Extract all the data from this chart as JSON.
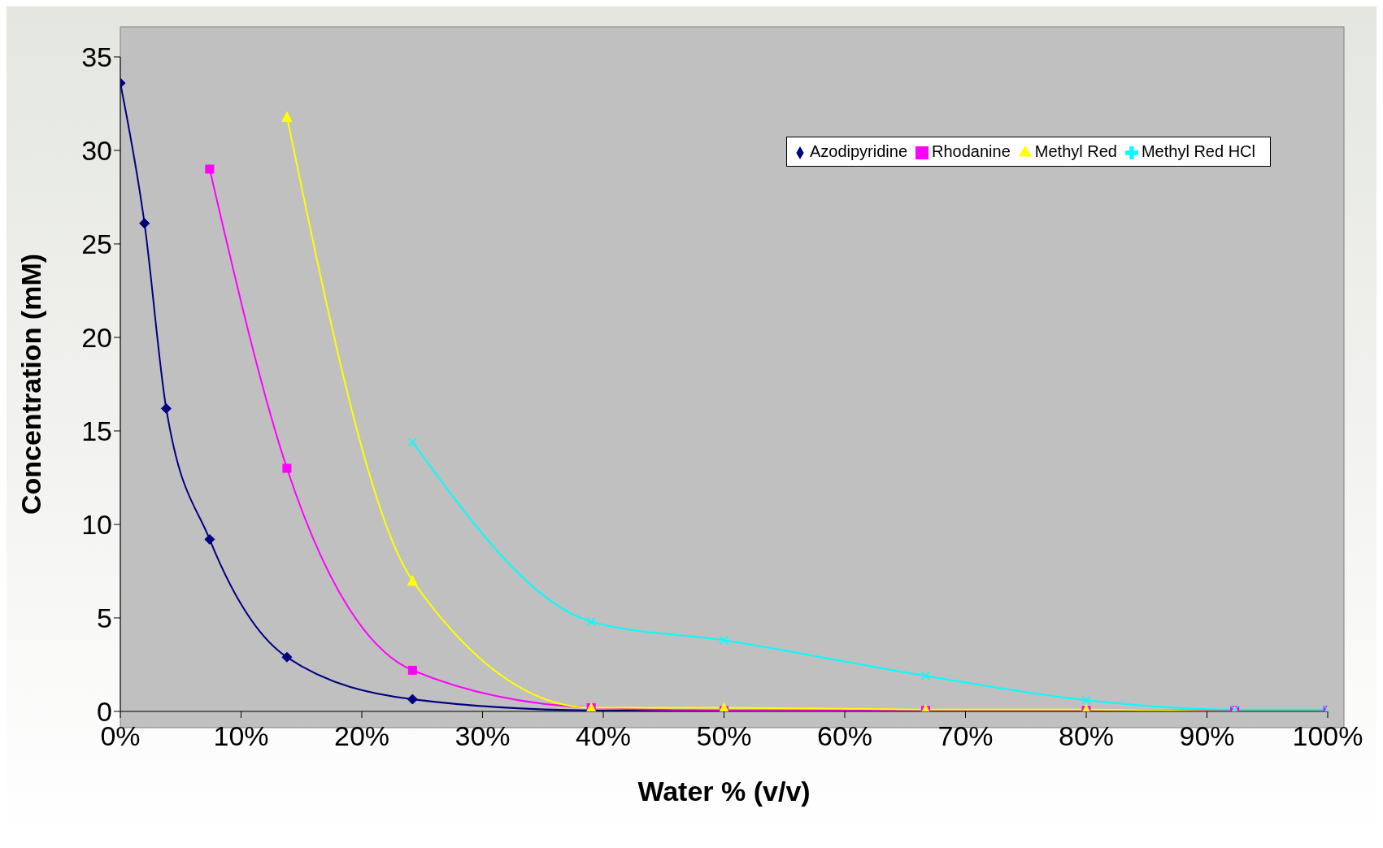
{
  "chart_data": {
    "type": "line",
    "xlabel": "Water % (v/v)",
    "ylabel": "Concentration (mM)",
    "xlim": [
      0,
      100
    ],
    "xticks": [
      {
        "value": 0,
        "label": "0%"
      },
      {
        "value": 10,
        "label": "10%"
      },
      {
        "value": 20,
        "label": "20%"
      },
      {
        "value": 30,
        "label": "30%"
      },
      {
        "value": 40,
        "label": "40%"
      },
      {
        "value": 50,
        "label": "50%"
      },
      {
        "value": 60,
        "label": "60%"
      },
      {
        "value": 70,
        "label": "70%"
      },
      {
        "value": 80,
        "label": "80%"
      },
      {
        "value": 90,
        "label": "90%"
      },
      {
        "value": 100,
        "label": "100%"
      }
    ],
    "ylim": [
      0,
      35
    ],
    "yticks": [
      0,
      5,
      10,
      15,
      20,
      25,
      30,
      35
    ],
    "grid": false,
    "legend": "top right",
    "series": [
      {
        "name": "Azodipyridine",
        "color": "#000080",
        "marker": "diamond",
        "x": [
          0,
          2,
          3.8,
          7.4,
          13.8,
          24.2,
          39,
          50
        ],
        "values": [
          33.6,
          26.1,
          16.2,
          9.2,
          2.9,
          0.65,
          0.05,
          0.02
        ]
      },
      {
        "name": "Rhodanine",
        "color": "#ff00ff",
        "marker": "square",
        "x": [
          7.4,
          13.8,
          24.2,
          39,
          50,
          66.7,
          80,
          92.3,
          100
        ],
        "values": [
          29,
          13,
          2.2,
          0.2,
          0.05,
          0.05,
          0.05,
          0.05,
          0.05
        ]
      },
      {
        "name": "Methyl Red",
        "color": "#ffff00",
        "marker": "triangle",
        "x": [
          13.8,
          24.2,
          39,
          50,
          66.7,
          80,
          92.3,
          100
        ],
        "values": [
          31.8,
          7,
          0.2,
          0.2,
          0.1,
          0.1,
          0,
          0
        ]
      },
      {
        "name": "Methyl Red HCl",
        "color": "#00ffff",
        "marker": "cross",
        "x": [
          24.2,
          39,
          50,
          66.7,
          80,
          92.3,
          100
        ],
        "values": [
          14.4,
          4.8,
          3.8,
          1.9,
          0.6,
          0.1,
          0.1
        ]
      }
    ]
  }
}
